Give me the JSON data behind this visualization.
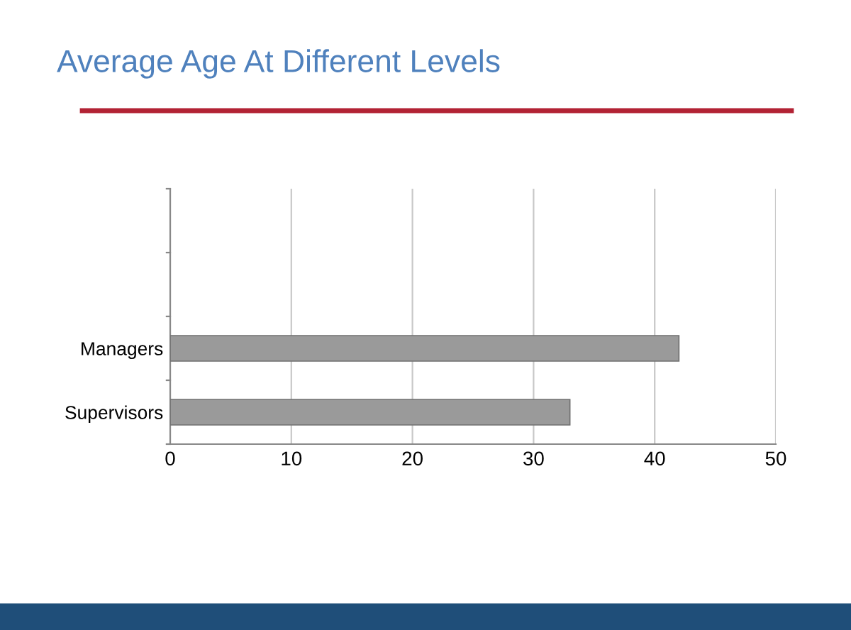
{
  "chart_data": {
    "type": "bar",
    "orientation": "horizontal",
    "title": "Average Age At Different Levels",
    "categories": [
      null,
      null,
      "Managers",
      "Supervisors"
    ],
    "values": [
      null,
      null,
      42,
      33
    ],
    "color": "#9a9a9a",
    "xlim": [
      0,
      50
    ],
    "xticks": [
      0,
      10,
      20,
      30,
      40,
      50
    ],
    "grid": "x",
    "legend": false
  }
}
